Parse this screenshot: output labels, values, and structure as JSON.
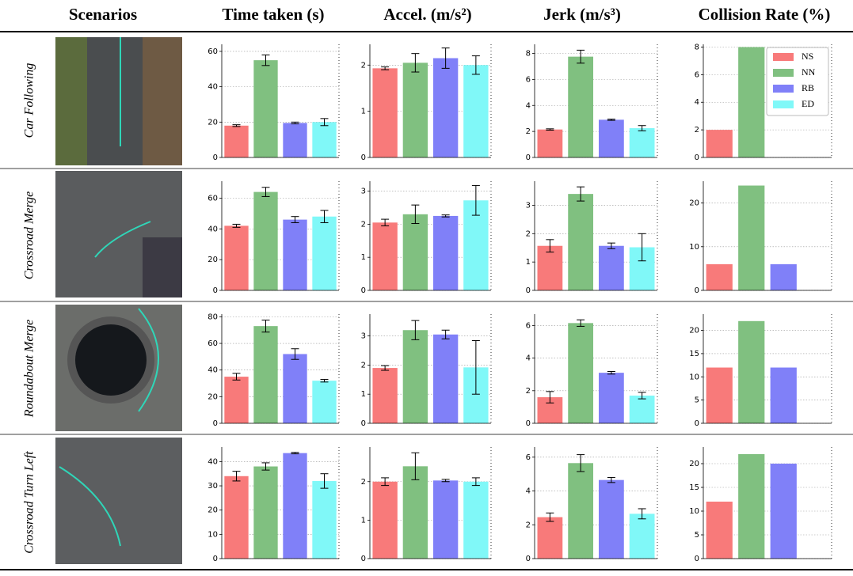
{
  "header": [
    "Scenarios",
    "Time taken (s)",
    "Accel. (m/s²)",
    "Jerk (m/s³)",
    "Collision Rate (%)"
  ],
  "row_labels": [
    "Car Following",
    "Crossroad Merge",
    "Roundabout Merge",
    "Crossroad Turn Left"
  ],
  "legend": {
    "names": [
      "NS",
      "NN",
      "RB",
      "ED"
    ],
    "colors": [
      "#f87a7a",
      "#80c080",
      "#8080f8",
      "#80f8f8"
    ]
  },
  "chart_data": [
    {
      "type": "bar",
      "values": [
        18,
        55,
        19.5,
        20
      ],
      "errors": [
        0.5,
        3,
        0.5,
        2
      ],
      "ylim": [
        0,
        64
      ],
      "yticks": [
        0,
        20,
        40,
        60
      ]
    },
    {
      "type": "bar",
      "values": [
        1.93,
        2.05,
        2.15,
        2.0
      ],
      "errors": [
        0.03,
        0.2,
        0.22,
        0.2
      ],
      "ylim": [
        0,
        2.45
      ],
      "yticks": [
        0,
        1,
        2
      ]
    },
    {
      "type": "bar",
      "values": [
        2.15,
        7.75,
        2.9,
        2.25
      ],
      "errors": [
        0.05,
        0.5,
        0.05,
        0.2
      ],
      "ylim": [
        0,
        8.7
      ],
      "yticks": [
        0,
        2,
        4,
        6,
        8
      ]
    },
    {
      "type": "bar",
      "values": [
        2,
        8,
        0,
        0
      ],
      "ylim": [
        0,
        8.2
      ],
      "yticks": [
        0,
        2,
        4,
        6,
        8
      ],
      "legend": "upper right"
    },
    {
      "type": "bar",
      "values": [
        42,
        64,
        46,
        48
      ],
      "errors": [
        1,
        3,
        2,
        4
      ],
      "ylim": [
        0,
        71
      ],
      "yticks": [
        0,
        20,
        40,
        60
      ]
    },
    {
      "type": "bar",
      "values": [
        2.05,
        2.3,
        2.25,
        2.72
      ],
      "errors": [
        0.1,
        0.28,
        0.03,
        0.45
      ],
      "ylim": [
        0,
        3.3
      ],
      "yticks": [
        0,
        1,
        2,
        3
      ]
    },
    {
      "type": "bar",
      "values": [
        1.57,
        3.4,
        1.57,
        1.52
      ],
      "errors": [
        0.22,
        0.25,
        0.1,
        0.48
      ],
      "ylim": [
        0,
        3.85
      ],
      "yticks": [
        0,
        1,
        2,
        3
      ]
    },
    {
      "type": "bar",
      "values": [
        6,
        24,
        6,
        0
      ],
      "ylim": [
        0,
        25
      ],
      "yticks": [
        0,
        10,
        20
      ]
    },
    {
      "type": "bar",
      "values": [
        35,
        73,
        52,
        32
      ],
      "errors": [
        2.5,
        4.5,
        4,
        1
      ],
      "ylim": [
        0,
        82
      ],
      "yticks": [
        0,
        20,
        40,
        60,
        80
      ]
    },
    {
      "type": "bar",
      "values": [
        1.9,
        3.2,
        3.05,
        1.92
      ],
      "errors": [
        0.08,
        0.33,
        0.15,
        0.92
      ],
      "ylim": [
        0,
        3.75
      ],
      "yticks": [
        0,
        1,
        2,
        3
      ]
    },
    {
      "type": "bar",
      "values": [
        1.6,
        6.15,
        3.1,
        1.7
      ],
      "errors": [
        0.35,
        0.2,
        0.08,
        0.2
      ],
      "ylim": [
        0,
        6.7
      ],
      "yticks": [
        0,
        2,
        4,
        6
      ]
    },
    {
      "type": "bar",
      "values": [
        12,
        22,
        12,
        0
      ],
      "ylim": [
        0,
        23.5
      ],
      "yticks": [
        0,
        5,
        10,
        15,
        20
      ]
    },
    {
      "type": "bar",
      "values": [
        34,
        38,
        43.5,
        32
      ],
      "errors": [
        2,
        1.5,
        0.3,
        3
      ],
      "ylim": [
        0,
        46
      ],
      "yticks": [
        0,
        10,
        20,
        30,
        40
      ]
    },
    {
      "type": "bar",
      "values": [
        2.0,
        2.4,
        2.03,
        2.0
      ],
      "errors": [
        0.1,
        0.35,
        0.03,
        0.1
      ],
      "ylim": [
        0,
        2.9
      ],
      "yticks": [
        0,
        1,
        2
      ]
    },
    {
      "type": "bar",
      "values": [
        2.45,
        5.65,
        4.65,
        2.65
      ],
      "errors": [
        0.25,
        0.5,
        0.15,
        0.3
      ],
      "ylim": [
        0,
        6.6
      ],
      "yticks": [
        0,
        2,
        4,
        6
      ]
    },
    {
      "type": "bar",
      "values": [
        12,
        22,
        20,
        0
      ],
      "ylim": [
        0,
        23.5
      ],
      "yticks": [
        0,
        5,
        10,
        15,
        20
      ]
    }
  ]
}
